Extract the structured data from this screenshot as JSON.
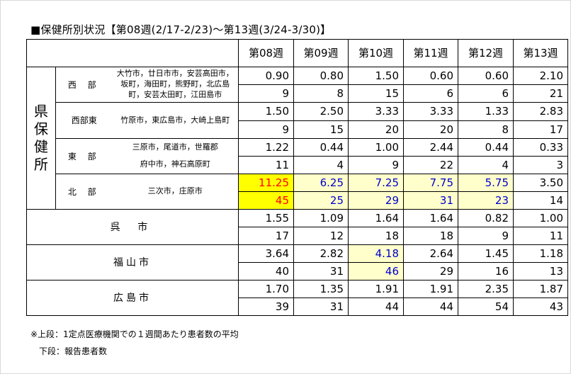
{
  "title": "■保健所別状況【第08週(2/17-2/23)～第13週(3/24-3/30)】",
  "weeks": [
    "第08週",
    "第09週",
    "第10週",
    "第11週",
    "第12週",
    "第13週"
  ],
  "pref_label": [
    "県",
    "保",
    "健",
    "所"
  ],
  "regions": {
    "west": "西 部",
    "west_east": "西部東",
    "east": "東 部",
    "north": "北 部"
  },
  "municipalities": {
    "west": "大竹市，廿日市市，安芸高田市，坂町，海田町，熊野町，北広島町，安芸太田町，江田島市",
    "west_east": "竹原市，東広島市，大崎上島町",
    "east_a": "三原市，尾道市，世羅郡",
    "east_b": "府中市，神石高原町",
    "north": "三次市，庄原市"
  },
  "cities": {
    "kure": "呉 市",
    "fukuyama": "福山市",
    "hiroshima": "広島市"
  },
  "rows": {
    "west": {
      "avg": [
        "0.90",
        "0.80",
        "1.50",
        "0.60",
        "0.60",
        "2.10"
      ],
      "count": [
        "9",
        "8",
        "15",
        "6",
        "6",
        "21"
      ]
    },
    "west_east": {
      "avg": [
        "1.50",
        "2.50",
        "3.33",
        "3.33",
        "1.33",
        "2.83"
      ],
      "count": [
        "9",
        "15",
        "20",
        "20",
        "8",
        "17"
      ]
    },
    "east": {
      "avg": [
        "1.22",
        "0.44",
        "1.00",
        "2.44",
        "0.44",
        "0.33"
      ],
      "count": [
        "11",
        "4",
        "9",
        "22",
        "4",
        "3"
      ]
    },
    "north": {
      "avg": [
        "11.25",
        "6.25",
        "7.25",
        "7.75",
        "5.75",
        "3.50"
      ],
      "count": [
        "45",
        "25",
        "29",
        "31",
        "23",
        "14"
      ]
    },
    "kure": {
      "avg": [
        "1.55",
        "1.09",
        "1.64",
        "1.64",
        "0.82",
        "1.00"
      ],
      "count": [
        "17",
        "12",
        "18",
        "18",
        "9",
        "11"
      ]
    },
    "fukuyama": {
      "avg": [
        "3.64",
        "2.82",
        "4.18",
        "2.64",
        "1.45",
        "1.18"
      ],
      "count": [
        "40",
        "31",
        "46",
        "29",
        "16",
        "13"
      ]
    },
    "hiroshima": {
      "avg": [
        "1.70",
        "1.35",
        "1.91",
        "1.91",
        "2.35",
        "1.87"
      ],
      "count": [
        "39",
        "31",
        "44",
        "44",
        "54",
        "43"
      ]
    }
  },
  "highlight_colors": {
    "alert_bg": "#ffff00",
    "alert_text": "#ff0000",
    "warn_bg": "#ffffcc",
    "warn_text": "#0000cc"
  },
  "notes": {
    "line1": "※上段：1定点医療機関での１週間あたり患者数の平均",
    "line2": "下段：報告患者数"
  }
}
